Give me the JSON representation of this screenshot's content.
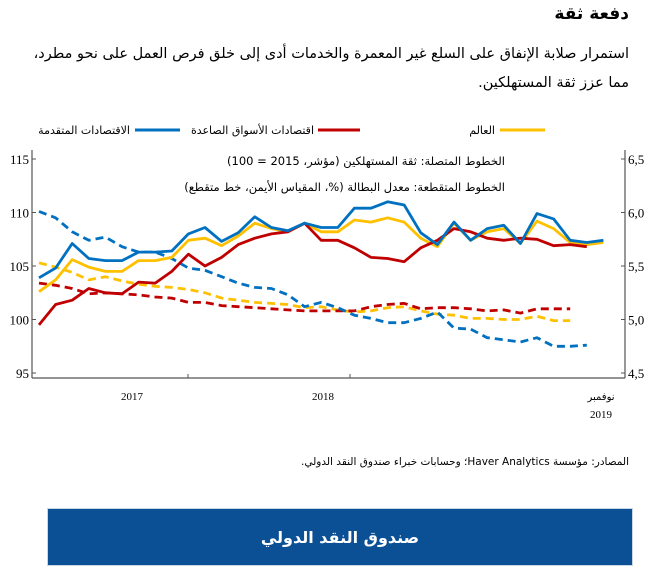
{
  "header": {
    "title": "دفعة ثقة",
    "body": "استمرار صلابة الإنفاق على السلع غير المعمرة والخدمات أدى إلى خلق فرص العمل على نحو مطرد، مما عزز ثقة المستهلكين."
  },
  "chart_data": {
    "type": "line",
    "annotations": [
      "الخطوط المتصلة: ثقة المستهلكين (مؤشر، 2015 = 100)",
      "الخطوط المتقطعة: معدل البطالة (%، المقياس الأيمن، خط متقطع)"
    ],
    "legend": {
      "placement": "top"
    },
    "x_tick_labels": [
      "2017",
      "2018",
      "نوفمبر",
      "2019"
    ],
    "y_left": {
      "range": [
        95,
        115
      ],
      "ticks": [
        "95",
        "100",
        "105",
        "110",
        "115"
      ]
    },
    "y_right": {
      "range": [
        4.5,
        6.5
      ],
      "ticks": [
        "4,5",
        "5,0",
        "5,5",
        "6,0",
        "6,5"
      ]
    },
    "grid": false,
    "series": [
      {
        "name": "العالم",
        "color": "#ffc000",
        "style": "solid",
        "axis": "left",
        "values": [
          102.6,
          103.7,
          105.6,
          104.9,
          104.5,
          104.5,
          105.5,
          105.5,
          105.8,
          107.4,
          107.6,
          106.9,
          107.8,
          109.0,
          108.5,
          108.2,
          109.0,
          108.2,
          108.2,
          109.3,
          109.1,
          109.5,
          109.1,
          107.6,
          106.8,
          109.0,
          107.4,
          108.2,
          108.5,
          107.1,
          109.2,
          108.5,
          107.2,
          107.0,
          107.2
        ]
      },
      {
        "name": "اقتصادات الأسواق الصاعدة",
        "color": "#c00000",
        "style": "solid",
        "axis": "left",
        "values": [
          99.5,
          101.4,
          101.8,
          102.9,
          102.5,
          102.4,
          103.5,
          103.4,
          104.5,
          106.1,
          105.0,
          105.8,
          107.0,
          107.6,
          108.0,
          108.2,
          109.0,
          107.4,
          107.4,
          106.7,
          105.8,
          105.7,
          105.4,
          106.7,
          107.4,
          108.5,
          108.2,
          107.6,
          107.4,
          107.6,
          107.5,
          106.9,
          107.0,
          106.8
        ]
      },
      {
        "name": "الاقتصادات المتقدمة",
        "color": "#0070c0",
        "style": "solid",
        "axis": "left",
        "values": [
          103.9,
          104.8,
          107.1,
          105.7,
          105.5,
          105.5,
          106.3,
          106.3,
          106.4,
          108.0,
          108.6,
          107.3,
          108.1,
          109.6,
          108.6,
          108.3,
          109.0,
          108.6,
          108.6,
          110.4,
          110.4,
          111.0,
          110.7,
          108.1,
          107.0,
          109.1,
          107.4,
          108.5,
          108.8,
          107.1,
          109.9,
          109.4,
          107.4,
          107.2,
          107.4
        ]
      },
      {
        "name": "العالم",
        "color": "#ffc000",
        "style": "dashed",
        "axis": "right",
        "values": [
          5.53,
          5.49,
          5.44,
          5.37,
          5.4,
          5.36,
          5.33,
          5.31,
          5.3,
          5.28,
          5.25,
          5.2,
          5.18,
          5.16,
          5.15,
          5.14,
          5.11,
          5.12,
          5.09,
          5.07,
          5.08,
          5.11,
          5.12,
          5.08,
          5.05,
          5.04,
          5.01,
          5.01,
          5.0,
          5.0,
          5.03,
          4.99,
          4.99
        ]
      },
      {
        "name": "اقتصادات الأسواق الصاعدة",
        "color": "#c00000",
        "style": "dashed",
        "axis": "right",
        "values": [
          5.34,
          5.32,
          5.29,
          5.24,
          5.25,
          5.24,
          5.23,
          5.21,
          5.2,
          5.16,
          5.16,
          5.13,
          5.12,
          5.11,
          5.1,
          5.09,
          5.08,
          5.08,
          5.08,
          5.08,
          5.12,
          5.14,
          5.15,
          5.1,
          5.11,
          5.11,
          5.1,
          5.08,
          5.09,
          5.06,
          5.1,
          5.1,
          5.1
        ]
      },
      {
        "name": "الاقتصادات المتقدمة",
        "color": "#0070c0",
        "style": "dashed",
        "axis": "right",
        "values": [
          6.01,
          5.95,
          5.82,
          5.74,
          5.77,
          5.68,
          5.63,
          5.63,
          5.57,
          5.48,
          5.46,
          5.4,
          5.34,
          5.3,
          5.29,
          5.23,
          5.12,
          5.16,
          5.11,
          5.04,
          5.01,
          4.97,
          4.97,
          5.01,
          5.07,
          4.92,
          4.91,
          4.83,
          4.81,
          4.79,
          4.83,
          4.75,
          4.75,
          4.76
        ]
      }
    ]
  },
  "source": "المصادر: مؤسسة Haver Analytics؛ وحسابات خبراء صندوق النقد الدولي.",
  "button": {
    "label": "صندوق النقد الدولي"
  }
}
